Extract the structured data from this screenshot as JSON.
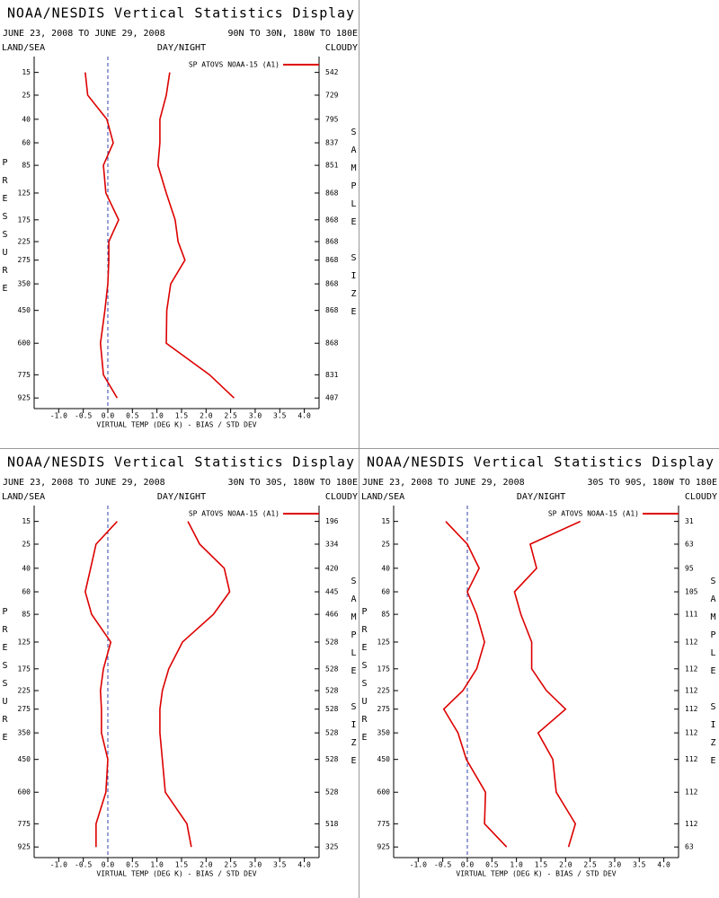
{
  "chart_data": [
    {
      "type": "line",
      "title": "NOAA/NESDIS Vertical Statistics Display",
      "subtitle": "JUNE 23, 2008 TO JUNE 29, 2008",
      "region": "90N TO 30N, 180W TO 180E",
      "corner_left": "LAND/SEA",
      "corner_center": "DAY/NIGHT",
      "corner_right": "CLOUDY",
      "xlabel": "VIRTUAL TEMP (DEG K) - BIAS / STD DEV",
      "ylabel": "PRESSURE",
      "y2label": "SAMPLE SIZE",
      "legend": "SP ATOVS NOAA-15 (A1)",
      "y": [
        15,
        25,
        40,
        60,
        85,
        125,
        175,
        225,
        275,
        350,
        450,
        600,
        775,
        925
      ],
      "series": [
        {
          "color": "#dd0000",
          "values": [
            -0.46,
            -0.41,
            -0.02,
            0.11,
            -0.09,
            -0.04,
            0.22,
            0.02,
            0.02,
            0,
            -0.06,
            -0.15,
            -0.09,
            0.19
          ]
        },
        {
          "color": "#dd0000",
          "values": [
            1.26,
            1.19,
            1.06,
            1.06,
            1.02,
            1.19,
            1.37,
            1.43,
            1.57,
            1.28,
            1.2,
            1.19,
            2.07,
            2.57
          ]
        }
      ],
      "sample_size": [
        542,
        729,
        795,
        837,
        851,
        868,
        868,
        868,
        868,
        868,
        868,
        868,
        831,
        407
      ],
      "xlim": [
        -1.5,
        4.3
      ],
      "ylim": [
        10,
        1000
      ],
      "xticks": [
        {
          "value": -1,
          "label": "-1.0"
        },
        {
          "value": -0.5,
          "label": "-0.5"
        },
        {
          "value": 0,
          "label": "0.0"
        },
        {
          "value": 0.5,
          "label": "0.5"
        },
        {
          "value": 1,
          "label": "1.0"
        },
        {
          "value": 1.5,
          "label": "1.5"
        },
        {
          "value": 2,
          "label": "2.0"
        },
        {
          "value": 2.5,
          "label": "2.5"
        },
        {
          "value": 3,
          "label": "3.0"
        },
        {
          "value": 3.5,
          "label": "3.5"
        },
        {
          "value": 4,
          "label": "4.0"
        }
      ],
      "yticks": [
        15,
        25,
        40,
        60,
        85,
        125,
        175,
        225,
        275,
        350,
        450,
        600,
        775,
        925
      ]
    },
    {
      "type": "line",
      "title": "NOAA/NESDIS Vertical Statistics Display",
      "subtitle": "JUNE 23, 2008 TO JUNE 29, 2008",
      "region": "30N TO 30S, 180W TO 180E",
      "corner_left": "LAND/SEA",
      "corner_center": "DAY/NIGHT",
      "corner_right": "CLOUDY",
      "xlabel": "VIRTUAL TEMP (DEG K) - BIAS / STD DEV",
      "ylabel": "PRESSURE",
      "y2label": "SAMPLE SIZE",
      "legend": "SP ATOVS NOAA-15 (A1)",
      "y": [
        15,
        25,
        40,
        60,
        85,
        125,
        175,
        225,
        275,
        350,
        450,
        600,
        775,
        925
      ],
      "series": [
        {
          "color": "#dd0000",
          "values": [
            0.19,
            -0.24,
            -0.35,
            -0.46,
            -0.33,
            0.06,
            -0.09,
            -0.15,
            -0.13,
            -0.13,
            0,
            -0.04,
            -0.24,
            -0.24
          ]
        },
        {
          "color": "#dd0000",
          "values": [
            1.63,
            1.87,
            2.37,
            2.48,
            2.15,
            1.52,
            1.24,
            1.11,
            1.06,
            1.06,
            1.11,
            1.17,
            1.61,
            1.7
          ]
        }
      ],
      "sample_size": [
        196,
        334,
        420,
        445,
        466,
        528,
        528,
        528,
        528,
        528,
        528,
        528,
        518,
        325
      ],
      "xlim": [
        -1.5,
        4.3
      ],
      "ylim": [
        10,
        1000
      ],
      "xticks": [
        {
          "value": -1,
          "label": "-1.0"
        },
        {
          "value": -0.5,
          "label": "-0.5"
        },
        {
          "value": 0,
          "label": "0.0"
        },
        {
          "value": 0.5,
          "label": "0.5"
        },
        {
          "value": 1,
          "label": "1.0"
        },
        {
          "value": 1.5,
          "label": "1.5"
        },
        {
          "value": 2,
          "label": "2.0"
        },
        {
          "value": 2.5,
          "label": "2.5"
        },
        {
          "value": 3,
          "label": "3.0"
        },
        {
          "value": 3.5,
          "label": "3.5"
        },
        {
          "value": 4,
          "label": "4.0"
        }
      ],
      "yticks": [
        15,
        25,
        40,
        60,
        85,
        125,
        175,
        225,
        275,
        350,
        450,
        600,
        775,
        925
      ]
    },
    {
      "type": "line",
      "title": "NOAA/NESDIS Vertical Statistics Display",
      "subtitle": "JUNE 23, 2008 TO JUNE 29, 2008",
      "region": "30S TO 90S, 180W TO 180E",
      "corner_left": "LAND/SEA",
      "corner_center": "DAY/NIGHT",
      "corner_right": "CLOUDY",
      "xlabel": "VIRTUAL TEMP (DEG K) - BIAS / STD DEV",
      "ylabel": "PRESSURE",
      "y2label": "SAMPLE SIZE",
      "legend": "SP ATOVS NOAA-15 (A1)",
      "y": [
        15,
        25,
        40,
        60,
        85,
        125,
        175,
        225,
        275,
        350,
        450,
        600,
        775,
        925
      ],
      "series": [
        {
          "color": "#dd0000",
          "values": [
            -0.44,
            0,
            0.24,
            0,
            0.19,
            0.35,
            0.19,
            -0.09,
            -0.48,
            -0.19,
            -0.02,
            0.37,
            0.35,
            0.8
          ]
        },
        {
          "color": "#dd0000",
          "values": [
            2.3,
            1.28,
            1.41,
            0.96,
            1.09,
            1.31,
            1.31,
            1.61,
            2,
            1.44,
            1.74,
            1.81,
            2.2,
            2.06
          ]
        }
      ],
      "sample_size": [
        31,
        63,
        95,
        105,
        111,
        112,
        112,
        112,
        112,
        112,
        112,
        112,
        112,
        63
      ],
      "xlim": [
        -1.5,
        4.3
      ],
      "ylim": [
        10,
        1000
      ],
      "xticks": [
        {
          "value": -1,
          "label": "-1.0"
        },
        {
          "value": -0.5,
          "label": "-0.5"
        },
        {
          "value": 0,
          "label": "0.0"
        },
        {
          "value": 0.5,
          "label": "0.5"
        },
        {
          "value": 1,
          "label": "1.0"
        },
        {
          "value": 1.5,
          "label": "1.5"
        },
        {
          "value": 2,
          "label": "2.0"
        },
        {
          "value": 2.5,
          "label": "2.5"
        },
        {
          "value": 3,
          "label": "3.0"
        },
        {
          "value": 3.5,
          "label": "3.5"
        },
        {
          "value": 4,
          "label": "4.0"
        }
      ],
      "yticks": [
        15,
        25,
        40,
        60,
        85,
        125,
        175,
        225,
        275,
        350,
        450,
        600,
        775,
        925
      ]
    }
  ]
}
